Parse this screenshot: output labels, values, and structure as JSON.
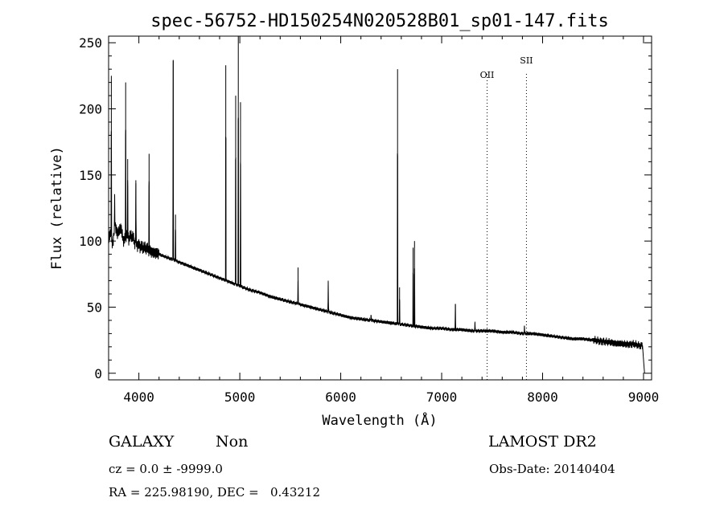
{
  "chart_data": {
    "type": "line",
    "title": "spec-56752-HD150254N020528B01_sp01-147.fits",
    "xlabel": "Wavelength (Å)",
    "ylabel": "Flux (relative)",
    "xlim": [
      3700,
      9080
    ],
    "ylim": [
      -5,
      255
    ],
    "xticks": [
      4000,
      5000,
      6000,
      7000,
      8000,
      9000
    ],
    "yticks": [
      0,
      50,
      100,
      150,
      200,
      250
    ],
    "grid": false,
    "series": [
      {
        "x": [
          3700,
          3720,
          3740,
          3760,
          3790,
          3820,
          3850,
          3880,
          3900,
          3930,
          3960,
          4000,
          4040,
          4080,
          4130,
          4200,
          4300,
          4400,
          4500,
          4600,
          4700,
          4800,
          4900,
          5000,
          5100,
          5200,
          5300,
          5400,
          5500,
          5600,
          5700,
          5800,
          5900,
          6000,
          6100,
          6200,
          6300,
          6400,
          6500,
          6600,
          6700,
          6800,
          6900,
          7000,
          7100,
          7200,
          7300,
          7400,
          7500,
          7600,
          7700,
          7800,
          7900,
          8000,
          8100,
          8200,
          8300,
          8400,
          8500,
          8600,
          8700,
          8800,
          8900,
          8950,
          8990,
          9000,
          9010
        ],
        "y": [
          100,
          108,
          96,
          112,
          105,
          110,
          100,
          106,
          102,
          104,
          99,
          97,
          95,
          94,
          92,
          90,
          87,
          84,
          81,
          78,
          75,
          72,
          69,
          66,
          63,
          61,
          58,
          56,
          54,
          52,
          50,
          48,
          46,
          44,
          42,
          41,
          40,
          39,
          38,
          37,
          36,
          35,
          34,
          34,
          33,
          33,
          32,
          32,
          32,
          31,
          31,
          30,
          30,
          29,
          28,
          27,
          26,
          26,
          25,
          24,
          23,
          22,
          22,
          21,
          21,
          10,
          0
        ]
      }
    ],
    "peaks": [
      {
        "x": 3727,
        "y": 225
      },
      {
        "x": 3760,
        "y": 135
      },
      {
        "x": 3869,
        "y": 220
      },
      {
        "x": 3889,
        "y": 162
      },
      {
        "x": 3970,
        "y": 146
      },
      {
        "x": 4101,
        "y": 166
      },
      {
        "x": 4340,
        "y": 237
      },
      {
        "x": 4363,
        "y": 120
      },
      {
        "x": 4861,
        "y": 233
      },
      {
        "x": 4959,
        "y": 210
      },
      {
        "x": 4985,
        "y": 255
      },
      {
        "x": 5007,
        "y": 205
      },
      {
        "x": 5577,
        "y": 80
      },
      {
        "x": 5876,
        "y": 70
      },
      {
        "x": 6300,
        "y": 44
      },
      {
        "x": 6563,
        "y": 230
      },
      {
        "x": 6583,
        "y": 65
      },
      {
        "x": 6717,
        "y": 95
      },
      {
        "x": 6731,
        "y": 100
      },
      {
        "x": 7136,
        "y": 52
      },
      {
        "x": 7330,
        "y": 39
      },
      {
        "x": 7820,
        "y": 36
      }
    ],
    "annotations": [
      {
        "label": "OII",
        "x": 7450
      },
      {
        "label": "SII",
        "x": 7840
      }
    ]
  },
  "footer": {
    "class_label": "GALAXY",
    "subclass_label": "Non",
    "survey_label": "LAMOST DR2",
    "cz_text": "cz = 0.0 ± -9999.0",
    "obs_date_text": "Obs-Date: 20140404",
    "coords_text": "RA = 225.98190, DEC =   0.43212"
  }
}
